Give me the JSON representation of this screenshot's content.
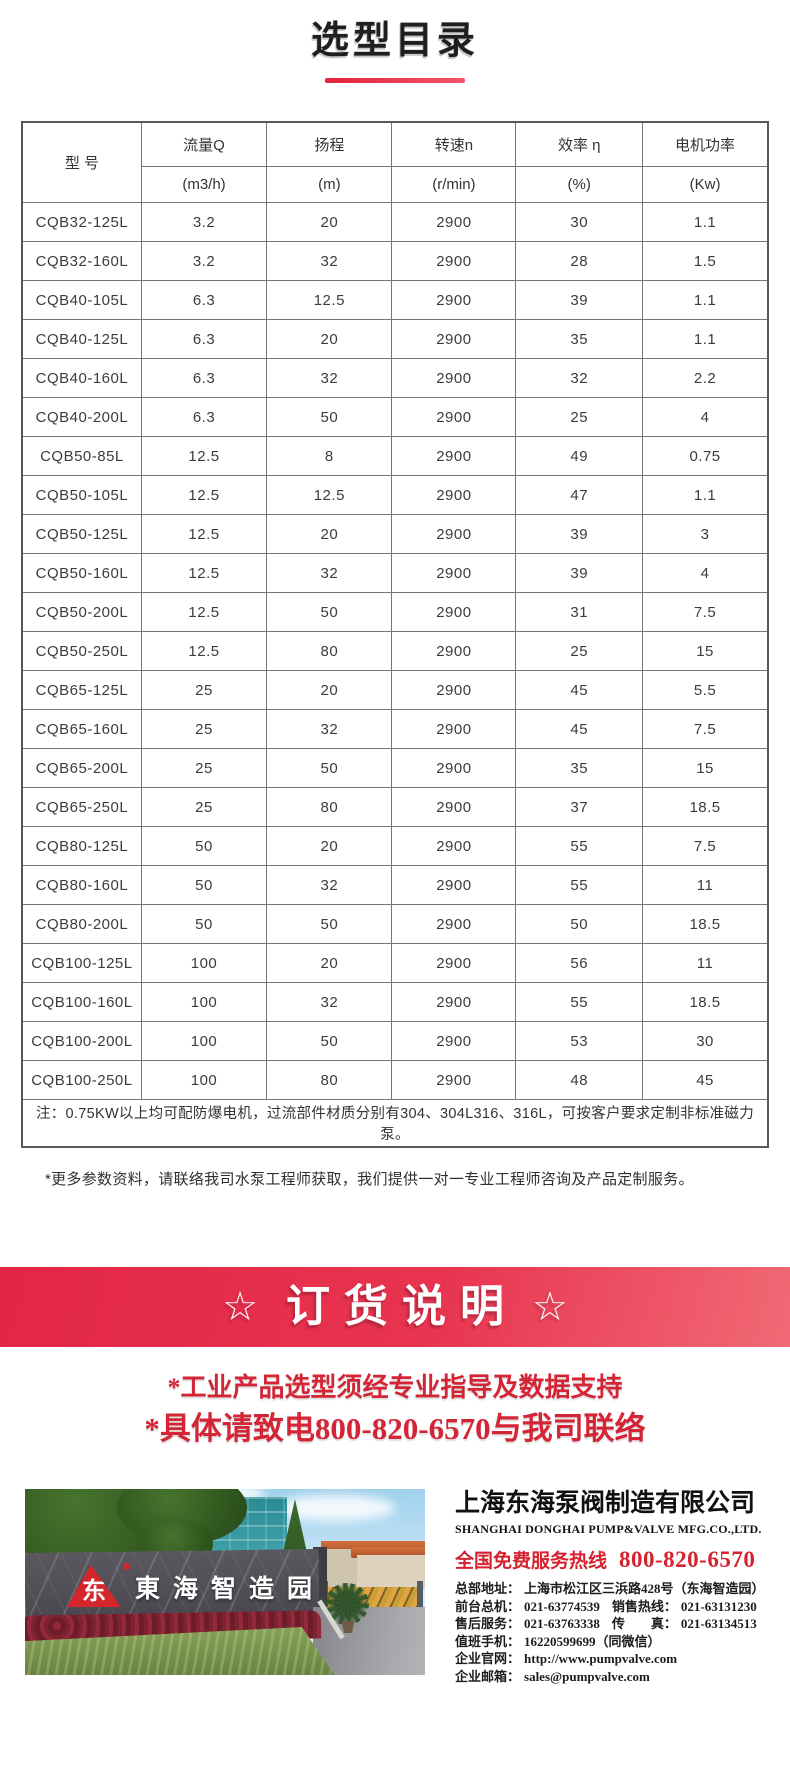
{
  "page": {
    "title": "选型目录"
  },
  "table": {
    "model_header": "型 号",
    "columns": [
      {
        "label": "流量Q",
        "unit": "(m3/h)"
      },
      {
        "label": "扬程",
        "unit": "(m)"
      },
      {
        "label": "转速n",
        "unit": "(r/min)"
      },
      {
        "label": "效率 η",
        "unit": "(%)"
      },
      {
        "label": "电机功率",
        "unit": "(Kw)"
      }
    ],
    "rows": [
      {
        "model": "CQB32-125L",
        "flow": "3.2",
        "head": "20",
        "speed": "2900",
        "eff": "30",
        "power": "1.1"
      },
      {
        "model": "CQB32-160L",
        "flow": "3.2",
        "head": "32",
        "speed": "2900",
        "eff": "28",
        "power": "1.5"
      },
      {
        "model": "CQB40-105L",
        "flow": "6.3",
        "head": "12.5",
        "speed": "2900",
        "eff": "39",
        "power": "1.1"
      },
      {
        "model": "CQB40-125L",
        "flow": "6.3",
        "head": "20",
        "speed": "2900",
        "eff": "35",
        "power": "1.1"
      },
      {
        "model": "CQB40-160L",
        "flow": "6.3",
        "head": "32",
        "speed": "2900",
        "eff": "32",
        "power": "2.2"
      },
      {
        "model": "CQB40-200L",
        "flow": "6.3",
        "head": "50",
        "speed": "2900",
        "eff": "25",
        "power": "4"
      },
      {
        "model": "CQB50-85L",
        "flow": "12.5",
        "head": "8",
        "speed": "2900",
        "eff": "49",
        "power": "0.75"
      },
      {
        "model": "CQB50-105L",
        "flow": "12.5",
        "head": "12.5",
        "speed": "2900",
        "eff": "47",
        "power": "1.1"
      },
      {
        "model": "CQB50-125L",
        "flow": "12.5",
        "head": "20",
        "speed": "2900",
        "eff": "39",
        "power": "3"
      },
      {
        "model": "CQB50-160L",
        "flow": "12.5",
        "head": "32",
        "speed": "2900",
        "eff": "39",
        "power": "4"
      },
      {
        "model": "CQB50-200L",
        "flow": "12.5",
        "head": "50",
        "speed": "2900",
        "eff": "31",
        "power": "7.5"
      },
      {
        "model": "CQB50-250L",
        "flow": "12.5",
        "head": "80",
        "speed": "2900",
        "eff": "25",
        "power": "15"
      },
      {
        "model": "CQB65-125L",
        "flow": "25",
        "head": "20",
        "speed": "2900",
        "eff": "45",
        "power": "5.5"
      },
      {
        "model": "CQB65-160L",
        "flow": "25",
        "head": "32",
        "speed": "2900",
        "eff": "45",
        "power": "7.5"
      },
      {
        "model": "CQB65-200L",
        "flow": "25",
        "head": "50",
        "speed": "2900",
        "eff": "35",
        "power": "15"
      },
      {
        "model": "CQB65-250L",
        "flow": "25",
        "head": "80",
        "speed": "2900",
        "eff": "37",
        "power": "18.5"
      },
      {
        "model": "CQB80-125L",
        "flow": "50",
        "head": "20",
        "speed": "2900",
        "eff": "55",
        "power": "7.5"
      },
      {
        "model": "CQB80-160L",
        "flow": "50",
        "head": "32",
        "speed": "2900",
        "eff": "55",
        "power": "11"
      },
      {
        "model": "CQB80-200L",
        "flow": "50",
        "head": "50",
        "speed": "2900",
        "eff": "50",
        "power": "18.5"
      },
      {
        "model": "CQB100-125L",
        "flow": "100",
        "head": "20",
        "speed": "2900",
        "eff": "56",
        "power": "11"
      },
      {
        "model": "CQB100-160L",
        "flow": "100",
        "head": "32",
        "speed": "2900",
        "eff": "55",
        "power": "18.5"
      },
      {
        "model": "CQB100-200L",
        "flow": "100",
        "head": "50",
        "speed": "2900",
        "eff": "53",
        "power": "30"
      },
      {
        "model": "CQB100-250L",
        "flow": "100",
        "head": "80",
        "speed": "2900",
        "eff": "48",
        "power": "45"
      }
    ],
    "note": "注：0.75KW以上均可配防爆电机，过流部件材质分别有304、304L316、316L，可按客户要求定制非标准磁力泵。"
  },
  "footnote": "*更多参数资料，请联络我司水泵工程师获取，我们提供一对一专业工程师咨询及产品定制服务。",
  "order": {
    "star": "☆",
    "title": "订货说明",
    "lines": [
      "*工业产品选型须经专业指导及数据支持",
      "*具体请致电800-820-6570与我司联络"
    ]
  },
  "company": {
    "photo_sign": "東海智造园",
    "logo_glyph": "东",
    "name_cn": "上海东海泵阀制造有限公司",
    "name_en": "SHANGHAI DONGHAI PUMP&VALVE MFG.CO.,LTD.",
    "hotline_label": "全国免费服务热线",
    "hotline_number": "800-820-6570",
    "contact_lines": [
      [
        {
          "label": "总部地址：",
          "value": "上海市松江区三浜路428号（东海智造园）"
        }
      ],
      [
        {
          "label": "前台总机：",
          "value": "021-63774539"
        },
        {
          "label": "销售热线：",
          "value": "021-63131230"
        }
      ],
      [
        {
          "label": "售后服务：",
          "value": "021-63763338"
        },
        {
          "label": "传　　真：",
          "value": "021-63134513"
        }
      ],
      [
        {
          "label": "值班手机：",
          "value": "16220599699（同微信）"
        }
      ],
      [
        {
          "label": "企业官网：",
          "value": "http://www.pumpvalve.com"
        }
      ],
      [
        {
          "label": "企业邮箱：",
          "value": "sales@pumpvalve.com"
        }
      ]
    ]
  },
  "colors": {
    "accent_red": "#d6222e",
    "promo_red": "#d32536",
    "banner_red_start": "#e22646",
    "banner_red_end": "#f0616e",
    "title_rule_red": "#e8304b"
  }
}
